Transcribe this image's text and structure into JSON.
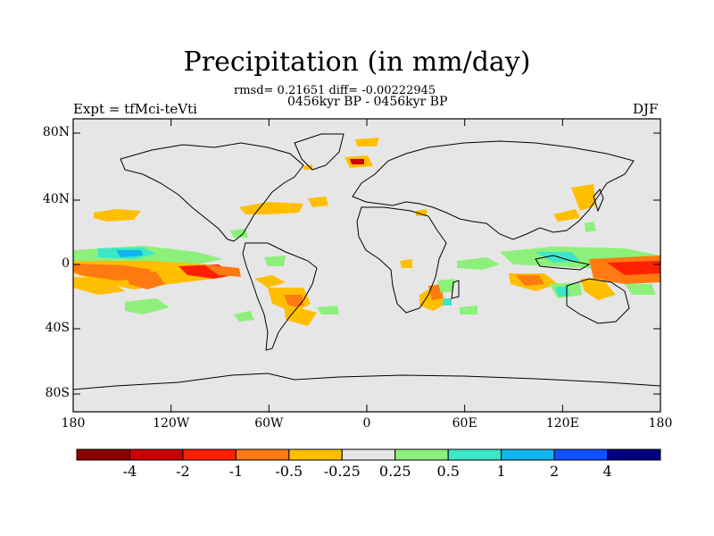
{
  "map": {
    "title": "Precipitation (in mm/day)",
    "stats_line": "rmsd= 0.21651 diff= -0.00222945",
    "period_line": "0456kyr BP - 0456kyr BP",
    "experiment_label": "Expt = tfMci-teVti",
    "season_label": "DJF",
    "y_ticks": [
      "80N",
      "40N",
      "0",
      "40S",
      "80S"
    ],
    "x_ticks": [
      "180",
      "120W",
      "60W",
      "0",
      "60E",
      "120E",
      "180"
    ],
    "background_color": "#e6e6e6"
  },
  "colorbar": {
    "labels": [
      "-4",
      "-2",
      "-1",
      "-0.5",
      "-0.25",
      "0.25",
      "0.5",
      "1",
      "2",
      "4"
    ],
    "colors": [
      "#8b0000",
      "#cc0000",
      "#ff2000",
      "#ff7a10",
      "#ffbf00",
      "#e6e6e6",
      "#8cf07a",
      "#3ce6c8",
      "#10b4f0",
      "#1050ff",
      "#000080"
    ]
  }
}
